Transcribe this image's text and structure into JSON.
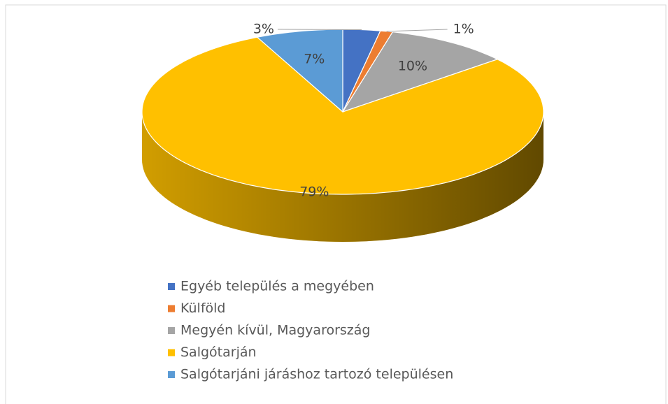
{
  "chart_data": {
    "type": "pie3d",
    "categories": [
      "Egyéb település a megyében",
      "Külföld",
      "Megyén kívül, Magyarország",
      "Salgótarján",
      "Salgótarjáni járáshoz tartozó településen"
    ],
    "values": [
      3,
      1,
      10,
      79,
      7
    ],
    "value_labels": [
      "3%",
      "1%",
      "10%",
      "79%",
      "7%"
    ],
    "colors": [
      "#4472c4",
      "#ed7d31",
      "#a5a5a5",
      "#ffc000",
      "#5b9bd5"
    ],
    "legend": "bottom"
  }
}
